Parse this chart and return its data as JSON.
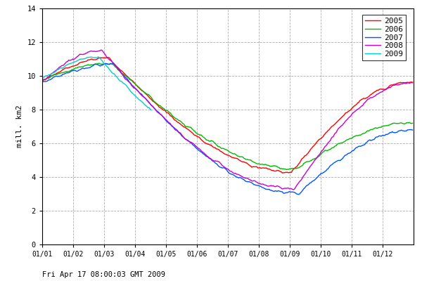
{
  "ylabel": "mill. km2",
  "xlabel": "Fri Apr 17 08:00:03 GMT 2009",
  "ylim": [
    0,
    14
  ],
  "yticks": [
    0,
    2,
    4,
    6,
    8,
    10,
    12,
    14
  ],
  "xtick_labels": [
    "01/01",
    "01/02",
    "01/03",
    "01/04",
    "01/05",
    "01/06",
    "01/07",
    "01/08",
    "01/09",
    "01/10",
    "01/11",
    "01/12"
  ],
  "background_color": "#ffffff",
  "grid_color": "#888888",
  "series": {
    "2005": {
      "color": "#ff0000",
      "lw": 1.0
    },
    "2006": {
      "color": "#00bb00",
      "lw": 1.0
    },
    "2007": {
      "color": "#0055ff",
      "lw": 1.0
    },
    "2008": {
      "color": "#cc00cc",
      "lw": 1.0
    },
    "2009": {
      "color": "#00cccc",
      "lw": 1.0
    }
  }
}
